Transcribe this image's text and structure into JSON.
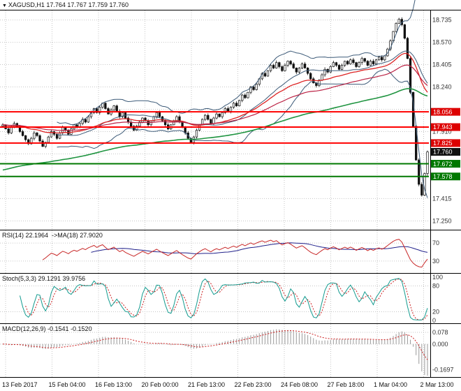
{
  "header": {
    "quote": "XAGUSD,H1 17.764 17.767 17.759 17.760",
    "ohlc": {
      "open": "17.764",
      "high": "17.767",
      "low": "17.759",
      "close": "17.760"
    }
  },
  "colors": {
    "background": "#ffffff",
    "grid": "#c6c6c6",
    "frame": "#000000",
    "candle": "#111111",
    "bollinger": "#3c5a78",
    "ma_fast_red": "#dd2222",
    "ma_mid_red": "#bb2244",
    "ma_slow_green": "#1f9440",
    "level_red": "#ff0000",
    "level_green": "#007800",
    "badge_red": "#dd0000",
    "badge_green": "#007800",
    "badge_black": "#111111",
    "axis_text": "#333333"
  },
  "chart_data": [
    {
      "type": "candlestick",
      "title": "XAGUSD,H1",
      "x_labels": [
        "13 Feb 2017",
        "15 Feb 04:00",
        "16 Feb 13:00",
        "20 Feb 00:00",
        "21 Feb 13:00",
        "22 Feb 23:00",
        "24 Feb 08:00",
        "27 Feb 18:00",
        "1 Mar 04:00",
        "2 Mar 13:00"
      ],
      "y_range": [
        17.2,
        18.8
      ],
      "grid_top": 18.735,
      "grid_step": 0.165,
      "y_ticks_visible": [
        {
          "v": 18.735,
          "label": "18.735"
        },
        {
          "v": 18.57,
          "label": "18.570"
        },
        {
          "v": 18.405,
          "label": "18.405"
        },
        {
          "v": 18.24,
          "label": "18.240"
        },
        {
          "v": 17.91,
          "label": "17.910"
        },
        {
          "v": 17.415,
          "label": "17.415"
        },
        {
          "v": 17.25,
          "label": "17.250"
        }
      ],
      "closes": [
        17.96,
        17.93,
        17.9,
        17.94,
        17.97,
        17.95,
        17.91,
        17.88,
        17.85,
        17.82,
        17.86,
        17.9,
        17.88,
        17.84,
        17.8,
        17.83,
        17.87,
        17.91,
        17.89,
        17.86,
        17.9,
        17.94,
        17.92,
        17.89,
        17.93,
        17.96,
        17.94,
        17.97,
        18.0,
        17.98,
        18.02,
        18.05,
        18.08,
        18.05,
        18.09,
        18.12,
        18.08,
        18.04,
        18.07,
        18.1,
        18.06,
        18.02,
        18.05,
        18.01,
        17.98,
        17.95,
        17.92,
        17.95,
        17.98,
        18.01,
        17.99,
        17.96,
        17.99,
        18.02,
        18.05,
        18.02,
        17.99,
        17.96,
        17.93,
        17.96,
        17.99,
        18.02,
        17.98,
        17.94,
        17.9,
        17.86,
        17.83,
        17.87,
        17.92,
        17.96,
        18.0,
        18.03,
        18.0,
        17.97,
        18.01,
        18.04,
        18.02,
        18.05,
        18.08,
        18.06,
        18.09,
        18.12,
        18.1,
        18.14,
        18.18,
        18.16,
        18.2,
        18.24,
        18.22,
        18.26,
        18.3,
        18.34,
        18.32,
        18.36,
        18.4,
        18.38,
        18.42,
        18.39,
        18.36,
        18.4,
        18.43,
        18.41,
        18.38,
        18.35,
        18.38,
        18.41,
        18.38,
        18.34,
        18.3,
        18.27,
        18.25,
        18.29,
        18.33,
        18.37,
        18.35,
        18.39,
        18.42,
        18.4,
        18.37,
        18.4,
        18.43,
        18.41,
        18.44,
        18.42,
        18.39,
        18.42,
        18.45,
        18.43,
        18.4,
        18.43,
        18.41,
        18.44,
        18.46,
        18.44,
        18.47,
        18.52,
        18.58,
        18.65,
        18.71,
        18.74,
        18.7,
        18.6,
        18.45,
        18.2,
        17.95,
        17.7,
        17.52,
        17.44,
        17.6,
        17.76
      ],
      "levels": [
        {
          "price": 18.056,
          "label": "18.056",
          "kind": "red"
        },
        {
          "price": 17.943,
          "label": "17.943",
          "kind": "red"
        },
        {
          "price": 17.825,
          "label": "17.825",
          "kind": "red"
        },
        {
          "price": 17.672,
          "label": "17.672",
          "kind": "green"
        },
        {
          "price": 17.578,
          "label": "17.578",
          "kind": "green"
        }
      ],
      "current_price": {
        "value": 17.76,
        "label": "17.760"
      },
      "overlays": [
        {
          "name": "bollinger-bands",
          "period": 20,
          "deviation": 2
        },
        {
          "name": "ma-fast",
          "type": "ema",
          "period": 30
        },
        {
          "name": "ma-mid",
          "type": "ema",
          "period": 55
        },
        {
          "name": "ma-slow",
          "type": "ema",
          "period": 120,
          "seed": 17.62
        }
      ]
    },
    {
      "type": "line",
      "name": "RSI",
      "label": "RSI(14) 22.1964  ->MA(18) 27.9020",
      "params": {
        "period": 14,
        "ma_period": 18
      },
      "current": "22.1964",
      "ma_current": "27.9020",
      "y_ticks": [
        {
          "v": 70,
          "label": "70"
        },
        {
          "v": 30,
          "label": "30"
        }
      ]
    },
    {
      "type": "line",
      "name": "Stochastic",
      "label": "Stoch(5,3,3) 29.1291 39.9756",
      "params": {
        "k": 5,
        "d": 3,
        "slowing": 3
      },
      "current_k": "29.1291",
      "current_d": "39.9756",
      "y_ticks": [
        {
          "v": 100,
          "label": "100"
        },
        {
          "v": 80,
          "label": "80"
        },
        {
          "v": 20,
          "label": "20"
        },
        {
          "v": 0,
          "label": "0"
        }
      ]
    },
    {
      "type": "histogram",
      "name": "MACD",
      "label": "MACD(12,26,9) -0.1541 -0.1520",
      "params": {
        "fast": 12,
        "slow": 26,
        "signal": 9
      },
      "current": "-0.1541",
      "current_signal": "-0.1520",
      "y_ticks": [
        {
          "v": 0.078,
          "label": "0.078"
        },
        {
          "v": 0.0,
          "label": "0.000"
        },
        {
          "v": -0.1697,
          "label": "-0.1697"
        }
      ]
    }
  ]
}
